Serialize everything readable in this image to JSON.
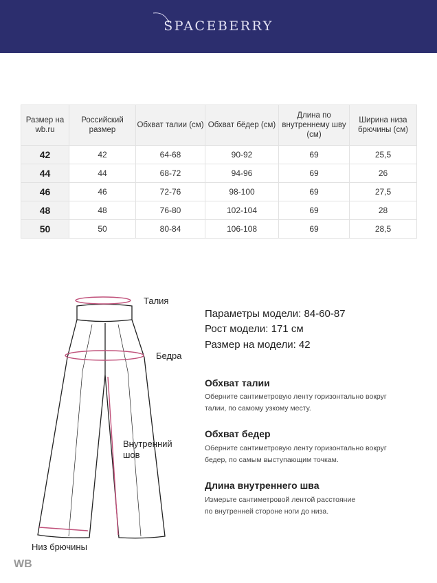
{
  "header": {
    "brand": "SPACEBERRY",
    "background": "#2c2e6e"
  },
  "table": {
    "headers": [
      "Размер на wb.ru",
      "Российский размер",
      "Обхват талии (см)",
      "Обхват бёдер (см)",
      "Длина по внутреннему шву (см)",
      "Ширина низа брючины (см)"
    ],
    "rows": [
      [
        "42",
        "42",
        "64-68",
        "90-92",
        "69",
        "25,5"
      ],
      [
        "44",
        "44",
        "68-72",
        "94-96",
        "69",
        "26"
      ],
      [
        "46",
        "46",
        "72-76",
        "98-100",
        "69",
        "27,5"
      ],
      [
        "48",
        "48",
        "76-80",
        "102-104",
        "69",
        "28"
      ],
      [
        "50",
        "50",
        "80-84",
        "106-108",
        "69",
        "28,5"
      ]
    ]
  },
  "diagram": {
    "labels": {
      "waist": "Талия",
      "hips": "Бедра",
      "inseam_line1": "Внутренний",
      "inseam_line2": "шов",
      "hem": "Низ брючины"
    },
    "measure_color": "#c0507a"
  },
  "model": {
    "params_label": "Параметры модели:",
    "params_value": "84-60-87",
    "height_label": "Рост модели:",
    "height_value": "171 см",
    "size_label": "Размер на модели:",
    "size_value": "42"
  },
  "guides": [
    {
      "title": "Обхват талии",
      "text1": "Оберните сантиметровую ленту горизонтально вокруг",
      "text2": "талии, по самому узкому месту."
    },
    {
      "title": "Обхват бедер",
      "text1": "Оберните сантиметровую ленту горизонтально вокруг",
      "text2": "бедер, по самым выступающим точкам."
    },
    {
      "title": "Длина внутреннего шва",
      "text1": "Измерьте сантиметровой лентой расстояние",
      "text2": "по внутренней стороне ноги до низа."
    }
  ],
  "watermark": "WB"
}
